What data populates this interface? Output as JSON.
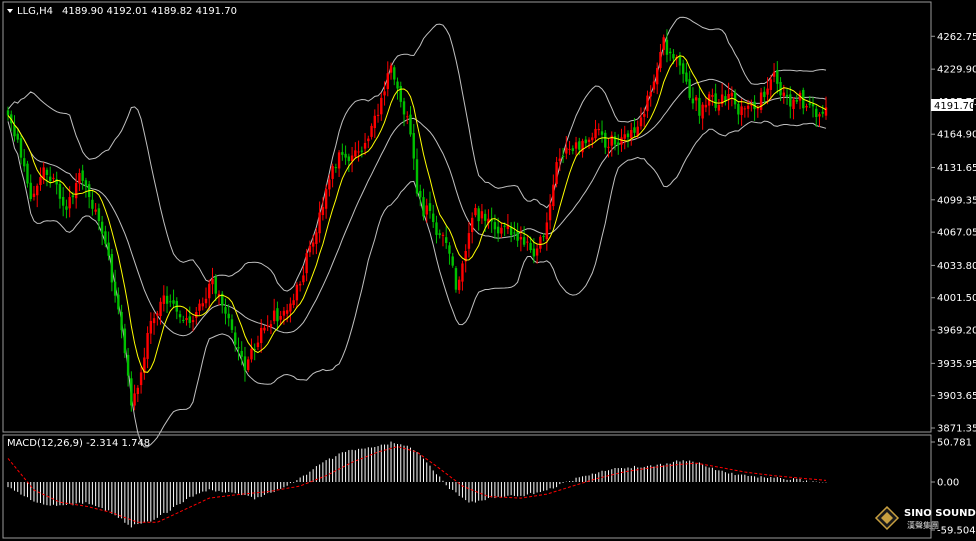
{
  "header": {
    "symbol_timeframe": "LLG,H4",
    "ohlc": "4189.90 4192.01 4189.82 4191.70"
  },
  "price_scale": {
    "ticks": [
      "4262.75",
      "4229.90",
      "4197.70",
      "4164.90",
      "4131.65",
      "4099.35",
      "4067.05",
      "4033.80",
      "4001.50",
      "3969.20",
      "3935.95",
      "3903.65",
      "3871.35"
    ],
    "current_price": "4191.70"
  },
  "macd": {
    "label": "MACD(12,26,9) -2.314 1.748",
    "ticks": [
      "50.781",
      "0.00",
      "-59.504"
    ]
  },
  "logo": {
    "name": "SINO SOUND",
    "sub": "漢聲集團"
  },
  "colors": {
    "background": "#000000",
    "bull": "#ff0000",
    "bear": "#00c000",
    "ma": "#ffff00",
    "bands": "#c0c0c0",
    "macd_hist": "#ffffff",
    "signal": "#ff0000",
    "price_tag": "#ffffff"
  },
  "chart_data": {
    "type": "candlestick",
    "symbol": "LLG",
    "timeframe": "H4",
    "last_close": 4191.7,
    "price_range": [
      3871.35,
      4279.0
    ],
    "macd_range": [
      -59.504,
      50.781
    ],
    "indicators": [
      "Bollinger Bands (upper/middle/lower)",
      "Moving average (yellow)",
      "MACD(12,26,9)"
    ],
    "price_path": [
      [
        0,
        4180
      ],
      [
        3,
        4160
      ],
      [
        7,
        4105
      ],
      [
        11,
        4130
      ],
      [
        14,
        4120
      ],
      [
        18,
        4090
      ],
      [
        22,
        4120
      ],
      [
        26,
        4095
      ],
      [
        30,
        4060
      ],
      [
        34,
        3985
      ],
      [
        36,
        3950
      ],
      [
        38,
        3895
      ],
      [
        41,
        3930
      ],
      [
        44,
        3980
      ],
      [
        48,
        4000
      ],
      [
        52,
        3990
      ],
      [
        56,
        3975
      ],
      [
        60,
        4000
      ],
      [
        63,
        4015
      ],
      [
        67,
        3990
      ],
      [
        71,
        3950
      ],
      [
        73,
        3930
      ],
      [
        76,
        3955
      ],
      [
        80,
        3980
      ],
      [
        84,
        3985
      ],
      [
        88,
        4000
      ],
      [
        92,
        4040
      ],
      [
        96,
        4080
      ],
      [
        99,
        4120
      ],
      [
        102,
        4140
      ],
      [
        106,
        4145
      ],
      [
        110,
        4150
      ],
      [
        113,
        4180
      ],
      [
        116,
        4210
      ],
      [
        118,
        4230
      ],
      [
        120,
        4215
      ],
      [
        122,
        4190
      ],
      [
        124,
        4165
      ],
      [
        126,
        4110
      ],
      [
        128,
        4085
      ],
      [
        130,
        4090
      ],
      [
        132,
        4070
      ],
      [
        134,
        4060
      ],
      [
        136,
        4040
      ],
      [
        138,
        4015
      ],
      [
        140,
        4035
      ],
      [
        142,
        4070
      ],
      [
        144,
        4085
      ],
      [
        147,
        4080
      ],
      [
        150,
        4070
      ],
      [
        153,
        4075
      ],
      [
        156,
        4065
      ],
      [
        159,
        4055
      ],
      [
        162,
        4045
      ],
      [
        164,
        4060
      ],
      [
        166,
        4075
      ],
      [
        169,
        4135
      ],
      [
        172,
        4145
      ],
      [
        175,
        4150
      ],
      [
        178,
        4160
      ],
      [
        182,
        4165
      ],
      [
        185,
        4155
      ],
      [
        188,
        4160
      ],
      [
        191,
        4165
      ],
      [
        194,
        4175
      ],
      [
        197,
        4200
      ],
      [
        200,
        4235
      ],
      [
        202,
        4255
      ],
      [
        204,
        4245
      ],
      [
        206,
        4235
      ],
      [
        208,
        4220
      ],
      [
        210,
        4205
      ],
      [
        213,
        4190
      ],
      [
        216,
        4200
      ],
      [
        219,
        4195
      ],
      [
        222,
        4205
      ],
      [
        225,
        4190
      ],
      [
        228,
        4200
      ],
      [
        231,
        4195
      ],
      [
        234,
        4210
      ],
      [
        236,
        4225
      ],
      [
        238,
        4205
      ],
      [
        241,
        4195
      ],
      [
        244,
        4200
      ],
      [
        247,
        4190
      ],
      [
        250,
        4185
      ],
      [
        252,
        4190
      ]
    ],
    "macd_path": [
      [
        0,
        -5
      ],
      [
        8,
        -25
      ],
      [
        16,
        -30
      ],
      [
        24,
        -25
      ],
      [
        32,
        -38
      ],
      [
        38,
        -55
      ],
      [
        44,
        -48
      ],
      [
        50,
        -35
      ],
      [
        56,
        -18
      ],
      [
        62,
        -10
      ],
      [
        70,
        -14
      ],
      [
        76,
        -20
      ],
      [
        84,
        -8
      ],
      [
        90,
        5
      ],
      [
        96,
        22
      ],
      [
        102,
        35
      ],
      [
        108,
        43
      ],
      [
        114,
        46
      ],
      [
        118,
        50
      ],
      [
        124,
        45
      ],
      [
        130,
        20
      ],
      [
        136,
        -8
      ],
      [
        142,
        -26
      ],
      [
        148,
        -20
      ],
      [
        154,
        -18
      ],
      [
        160,
        -16
      ],
      [
        166,
        -10
      ],
      [
        172,
        0
      ],
      [
        178,
        8
      ],
      [
        184,
        15
      ],
      [
        190,
        18
      ],
      [
        196,
        20
      ],
      [
        202,
        22
      ],
      [
        208,
        28
      ],
      [
        212,
        25
      ],
      [
        218,
        16
      ],
      [
        224,
        10
      ],
      [
        232,
        6
      ],
      [
        240,
        4
      ],
      [
        246,
        2
      ],
      [
        252,
        -2
      ]
    ],
    "signal_path": [
      [
        0,
        30
      ],
      [
        8,
        -10
      ],
      [
        16,
        -25
      ],
      [
        24,
        -30
      ],
      [
        32,
        -38
      ],
      [
        40,
        -50
      ],
      [
        46,
        -50
      ],
      [
        54,
        -35
      ],
      [
        62,
        -20
      ],
      [
        72,
        -15
      ],
      [
        80,
        -12
      ],
      [
        90,
        -5
      ],
      [
        98,
        8
      ],
      [
        106,
        25
      ],
      [
        114,
        38
      ],
      [
        120,
        45
      ],
      [
        126,
        38
      ],
      [
        132,
        20
      ],
      [
        140,
        -5
      ],
      [
        148,
        -18
      ],
      [
        158,
        -20
      ],
      [
        166,
        -15
      ],
      [
        174,
        -5
      ],
      [
        182,
        5
      ],
      [
        190,
        13
      ],
      [
        198,
        18
      ],
      [
        206,
        22
      ],
      [
        212,
        24
      ],
      [
        220,
        18
      ],
      [
        228,
        12
      ],
      [
        236,
        8
      ],
      [
        244,
        5
      ],
      [
        252,
        2
      ]
    ]
  }
}
